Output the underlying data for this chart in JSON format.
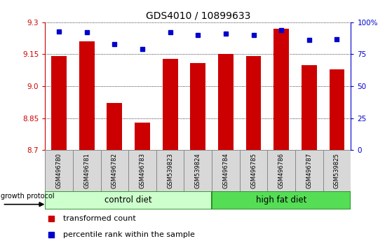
{
  "title": "GDS4010 / 10899633",
  "samples": [
    "GSM496780",
    "GSM496781",
    "GSM496782",
    "GSM496783",
    "GSM539823",
    "GSM539824",
    "GSM496784",
    "GSM496785",
    "GSM496786",
    "GSM496787",
    "GSM539825"
  ],
  "bar_values": [
    9.14,
    9.21,
    8.92,
    8.83,
    9.13,
    9.11,
    9.15,
    9.14,
    9.27,
    9.1,
    9.08
  ],
  "percentile_values": [
    93,
    92,
    83,
    79,
    92,
    90,
    91,
    90,
    94,
    86,
    87
  ],
  "bar_color": "#cc0000",
  "dot_color": "#0000cc",
  "ylim": [
    8.7,
    9.3
  ],
  "yticks": [
    8.7,
    8.85,
    9.0,
    9.15,
    9.3
  ],
  "right_yticks": [
    0,
    25,
    50,
    75,
    100
  ],
  "right_yticklabels": [
    "0",
    "25",
    "50",
    "75",
    "100%"
  ],
  "n_control": 6,
  "control_label": "control diet",
  "high_fat_label": "high fat diet",
  "growth_protocol_label": "growth protocol",
  "legend_bar_label": "transformed count",
  "legend_dot_label": "percentile rank within the sample",
  "bar_width": 0.55,
  "title_fontsize": 10,
  "tick_fontsize": 7.5,
  "label_fontsize": 8,
  "control_color": "#ccffcc",
  "high_fat_color": "#55dd55",
  "left_axis_color": "#cc0000",
  "right_axis_color": "#0000cc"
}
